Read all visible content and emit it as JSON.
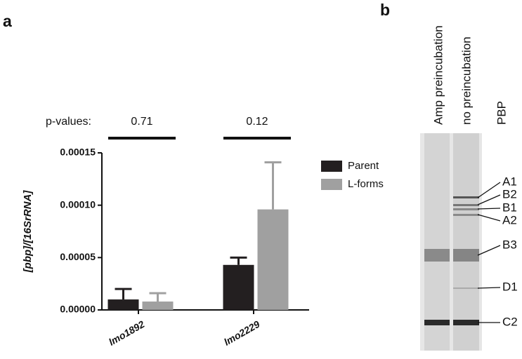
{
  "panels": [
    "a",
    "b"
  ],
  "chart_data": {
    "type": "bar",
    "ylabel": "[pbp]/[16SrRNA]",
    "categories": [
      "lmo1892",
      "lmo2229"
    ],
    "series": [
      {
        "name": "Parent",
        "color": "#231f20",
        "values": [
          1e-05,
          4.3e-05
        ],
        "errors": [
          1e-05,
          7e-06
        ]
      },
      {
        "name": "L-forms",
        "color": "#a0a0a0",
        "values": [
          8e-06,
          9.6e-05
        ],
        "errors": [
          8e-06,
          4.5e-05
        ]
      }
    ],
    "ylim": [
      0,
      0.00015
    ],
    "yticks": [
      {
        "value": 0,
        "label": "0.00000"
      },
      {
        "value": 5e-05,
        "label": "0.00005"
      },
      {
        "value": 0.0001,
        "label": "0.00010"
      },
      {
        "value": 0.00015,
        "label": "0.00015"
      }
    ],
    "annotation_label": "p-values:",
    "p_values": [
      "0.71",
      "0.12"
    ],
    "legend": "right"
  },
  "gel": {
    "lanes": [
      "Amp preincubation",
      "no preincubation",
      "PBP"
    ],
    "bands": [
      "A1",
      "B2",
      "B1",
      "A2",
      "B3",
      "D1",
      "C2"
    ]
  }
}
